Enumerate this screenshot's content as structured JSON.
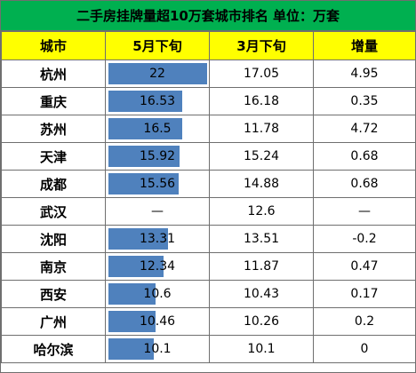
{
  "title": "二手房挂牌量超10万套城市排名   单位：万套",
  "headers": [
    "城市",
    "5月下旬",
    "3月下旬",
    "增量"
  ],
  "rows": [
    {
      "city": "杭州",
      "may": "22",
      "march": "17.05",
      "delta": "4.95"
    },
    {
      "city": "重庆",
      "may": "16.53",
      "march": "16.18",
      "delta": "0.35"
    },
    {
      "city": "苏州",
      "may": "16.5",
      "march": "11.78",
      "delta": "4.72"
    },
    {
      "city": "天津",
      "may": "15.92",
      "march": "15.24",
      "delta": "0.68"
    },
    {
      "city": "成都",
      "may": "15.56",
      "march": "14.88",
      "delta": "0.68"
    },
    {
      "city": "武汉",
      "may": "—",
      "march": "12.6",
      "delta": "—"
    },
    {
      "city": "沈阳",
      "may": "13.31",
      "march": "13.51",
      "delta": "-0.2"
    },
    {
      "city": "南京",
      "may": "12.34",
      "march": "11.87",
      "delta": "0.47"
    },
    {
      "city": "西安",
      "may": "10.6",
      "march": "10.43",
      "delta": "0.17"
    },
    {
      "city": "广州",
      "may": "10.46",
      "march": "10.26",
      "delta": "0.2"
    },
    {
      "city": "哈尔滨",
      "may": "10.1",
      "march": "10.1",
      "delta": "0"
    }
  ],
  "chart_data": {
    "type": "table",
    "title": "二手房挂牌量超10万套城市排名   单位：万套",
    "columns": [
      "城市",
      "5月下旬",
      "3月下旬",
      "增量"
    ],
    "categories": [
      "杭州",
      "重庆",
      "苏州",
      "天津",
      "成都",
      "武汉",
      "沈阳",
      "南京",
      "西安",
      "广州",
      "哈尔滨"
    ],
    "series": [
      {
        "name": "5月下旬",
        "values": [
          22,
          16.53,
          16.5,
          15.92,
          15.56,
          null,
          13.31,
          12.34,
          10.6,
          10.46,
          10.1
        ]
      },
      {
        "name": "3月下旬",
        "values": [
          17.05,
          16.18,
          11.78,
          15.24,
          14.88,
          12.6,
          13.51,
          11.87,
          10.43,
          10.26,
          10.1
        ]
      },
      {
        "name": "增量",
        "values": [
          4.95,
          0.35,
          4.72,
          0.68,
          0.68,
          null,
          -0.2,
          0.47,
          0.17,
          0.2,
          0
        ]
      }
    ],
    "bar_column": "5月下旬",
    "bar_color": "#4f81bd",
    "header_color": "#ffff00",
    "title_color": "#00b050"
  }
}
